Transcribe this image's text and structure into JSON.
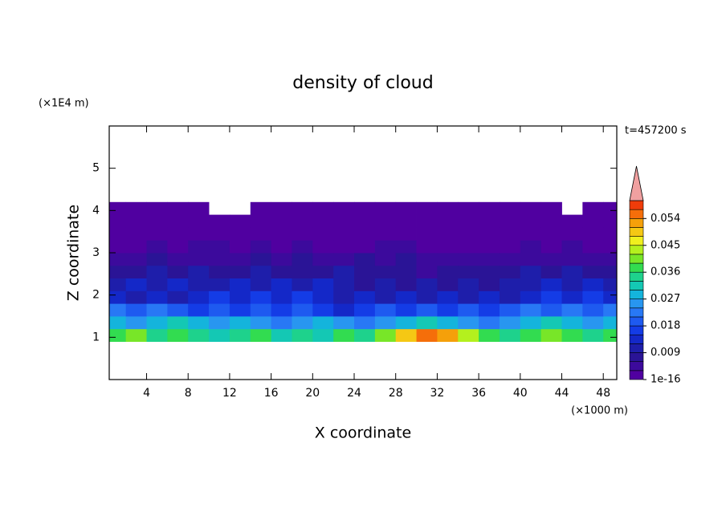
{
  "chart_data": {
    "type": "contour",
    "title": "density of cloud",
    "xlabel": "X coordinate",
    "ylabel": "Z coordinate",
    "xunit": "(×1000 m)",
    "yunit": "(×1E4 m)",
    "time_label": "t=457200 s",
    "xlim": [
      0.4,
      49.3
    ],
    "ylim": [
      0,
      6
    ],
    "xticks": [
      4,
      8,
      12,
      16,
      20,
      24,
      28,
      32,
      36,
      40,
      44,
      48
    ],
    "yticks": [
      1,
      2,
      3,
      4,
      5
    ],
    "x": [
      1,
      3,
      5,
      7,
      9,
      11,
      13,
      15,
      17,
      19,
      21,
      23,
      25,
      27,
      29,
      31,
      33,
      35,
      37,
      39,
      41,
      43,
      45,
      47,
      49
    ],
    "y": [
      1.05,
      1.35,
      1.65,
      1.95,
      2.25,
      2.55,
      2.85,
      3.15,
      3.45,
      3.75,
      4.05
    ],
    "z": [
      [
        0.036,
        0.039,
        0.033,
        0.036,
        0.033,
        0.03,
        0.033,
        0.036,
        0.03,
        0.033,
        0.03,
        0.036,
        0.033,
        0.039,
        0.048,
        0.054,
        0.051,
        0.042,
        0.036,
        0.033,
        0.036,
        0.039,
        0.036,
        0.033,
        0.036
      ],
      [
        0.027,
        0.024,
        0.027,
        0.03,
        0.027,
        0.024,
        0.027,
        0.024,
        0.021,
        0.024,
        0.027,
        0.024,
        0.021,
        0.024,
        0.027,
        0.03,
        0.027,
        0.024,
        0.021,
        0.024,
        0.027,
        0.03,
        0.027,
        0.024,
        0.027
      ],
      [
        0.021,
        0.018,
        0.021,
        0.018,
        0.015,
        0.018,
        0.015,
        0.018,
        0.015,
        0.018,
        0.015,
        0.012,
        0.015,
        0.018,
        0.015,
        0.018,
        0.015,
        0.018,
        0.015,
        0.018,
        0.021,
        0.018,
        0.021,
        0.018,
        0.021
      ],
      [
        0.012,
        0.009,
        0.012,
        0.009,
        0.012,
        0.015,
        0.012,
        0.015,
        0.012,
        0.015,
        0.012,
        0.009,
        0.012,
        0.009,
        0.012,
        0.009,
        0.012,
        0.009,
        0.012,
        0.009,
        0.012,
        0.015,
        0.012,
        0.015,
        0.012
      ],
      [
        0.009,
        0.012,
        0.009,
        0.012,
        0.009,
        0.009,
        0.012,
        0.009,
        0.012,
        0.009,
        0.012,
        0.009,
        0.006,
        0.009,
        0.006,
        0.009,
        0.006,
        0.009,
        0.006,
        0.009,
        0.009,
        0.012,
        0.009,
        0.012,
        0.009
      ],
      [
        0.006,
        0.006,
        0.009,
        0.006,
        0.009,
        0.006,
        0.006,
        0.009,
        0.006,
        0.006,
        0.006,
        0.009,
        0.006,
        0.006,
        0.006,
        0.003,
        0.006,
        0.006,
        0.006,
        0.006,
        0.009,
        0.006,
        0.009,
        0.006,
        0.006
      ],
      [
        0.003,
        0.003,
        0.006,
        0.003,
        0.003,
        0.003,
        0.003,
        0.006,
        0.003,
        0.006,
        0.003,
        0.003,
        0.006,
        0.003,
        0.006,
        0.003,
        0.003,
        0.003,
        0.003,
        0.003,
        0.003,
        0.003,
        0.003,
        0.003,
        0.003
      ],
      [
        0.001,
        0.001,
        0.003,
        0.001,
        0.003,
        0.003,
        0.001,
        0.003,
        0.001,
        0.003,
        0.001,
        0.001,
        0.001,
        0.003,
        0.003,
        0.001,
        0.001,
        0.001,
        0.001,
        0.001,
        0.003,
        0.001,
        0.003,
        0.001,
        0.001
      ],
      [
        0.001,
        0.001,
        0.001,
        0.001,
        0.001,
        0.001,
        0.001,
        0.001,
        0.001,
        0.001,
        0.001,
        0.001,
        0.001,
        0.001,
        0.001,
        0.001,
        0.001,
        0.001,
        0.001,
        0.001,
        0.001,
        0.001,
        0.001,
        0.001,
        0.001
      ],
      [
        0.001,
        0.001,
        0.001,
        0.001,
        0.001,
        0.001,
        0.001,
        0.001,
        0.001,
        0.001,
        0.001,
        0.001,
        0.001,
        0.001,
        0.001,
        0.001,
        0.001,
        0.001,
        0.001,
        0.001,
        0.001,
        0.001,
        0.001,
        0.001,
        0.001
      ],
      [
        0.001,
        0.001,
        0.001,
        0.001,
        0.001,
        null,
        null,
        0.001,
        0.001,
        0.001,
        0.001,
        0.001,
        0.001,
        0.001,
        0.001,
        0.001,
        0.001,
        0.001,
        0.001,
        0.001,
        0.001,
        0.001,
        null,
        0.001,
        0.001
      ]
    ],
    "levels": [
      1e-16,
      0.003,
      0.006,
      0.009,
      0.012,
      0.015,
      0.018,
      0.021,
      0.024,
      0.027,
      0.03,
      0.033,
      0.036,
      0.039,
      0.042,
      0.045,
      0.048,
      0.051,
      0.054,
      0.057,
      0.06
    ],
    "colors": [
      "#5000a0",
      "#3c0a9c",
      "#2a1496",
      "#1e1eaa",
      "#1428c8",
      "#143ce6",
      "#1e5af0",
      "#2878f5",
      "#2896f0",
      "#14b4dc",
      "#14c8b4",
      "#1ed28c",
      "#32dc50",
      "#78e628",
      "#b4f01e",
      "#f0f01e",
      "#f5c814",
      "#f5a00a",
      "#f56e0a",
      "#f03c0a"
    ],
    "extend_color": "#f0a0a0",
    "colorbar_ticks": [
      1e-16,
      0.009,
      0.018,
      0.027,
      0.036,
      0.045,
      0.054
    ]
  }
}
